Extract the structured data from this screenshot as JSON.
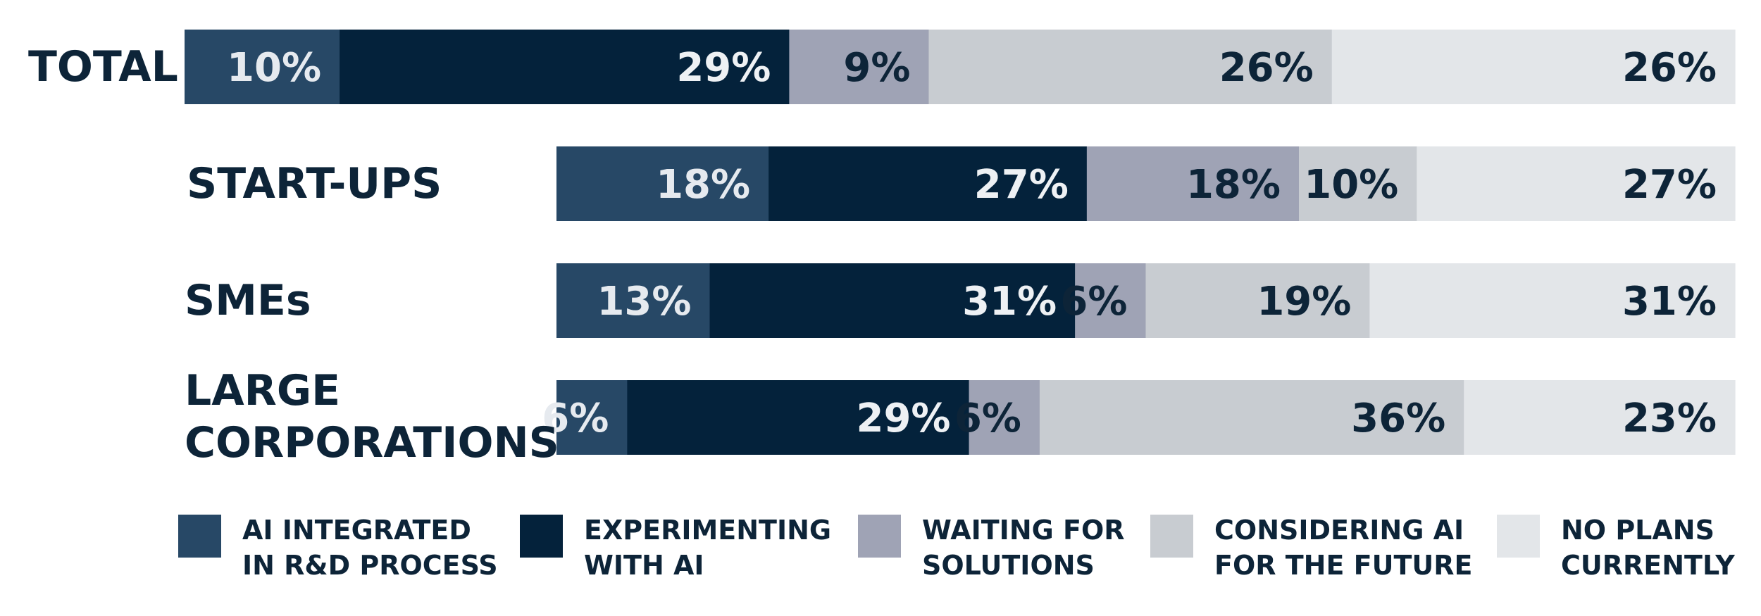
{
  "chart_data": {
    "type": "bar",
    "orientation": "horizontal",
    "stacked": true,
    "unit": "%",
    "categories": [
      "TOTAL",
      "START-UPS",
      "SMEs",
      "LARGE CORPORATIONS"
    ],
    "category_lines": [
      [
        "TOTAL"
      ],
      [
        "START-UPS"
      ],
      [
        "SMEs"
      ],
      [
        "LARGE",
        "CORPORATIONS"
      ]
    ],
    "series": [
      {
        "name": "AI INTEGRATED IN R&D PROCESS",
        "legend_lines": [
          "AI INTEGRATED",
          "IN R&D PROCESS"
        ],
        "color": "#274866",
        "label_color": "#e6eaef",
        "values": [
          10,
          18,
          13,
          6
        ]
      },
      {
        "name": "EXPERIMENTING WITH AI",
        "legend_lines": [
          "EXPERIMENTING",
          "WITH AI"
        ],
        "color": "#04223b",
        "label_color": "#eef1f4",
        "values": [
          29,
          27,
          31,
          29
        ]
      },
      {
        "name": "WAITING FOR SOLUTIONS",
        "legend_lines": [
          "WAITING FOR",
          "SOLUTIONS"
        ],
        "color": "#9fa3b5",
        "label_color": "#0d2438",
        "values": [
          9,
          18,
          6,
          6
        ]
      },
      {
        "name": "CONSIDERING AI FOR THE FUTURE",
        "legend_lines": [
          "CONSIDERING AI",
          "FOR THE FUTURE"
        ],
        "color": "#c8ccd1",
        "label_color": "#0d2438",
        "values": [
          26,
          10,
          19,
          36
        ]
      },
      {
        "name": "NO PLANS CURRENTLY",
        "legend_lines": [
          "NO PLANS",
          "CURRENTLY"
        ],
        "color": "#e3e6e9",
        "label_color": "#0d2438",
        "values": [
          26,
          27,
          31,
          23
        ]
      }
    ],
    "legend_position": "bottom",
    "grid": false
  }
}
